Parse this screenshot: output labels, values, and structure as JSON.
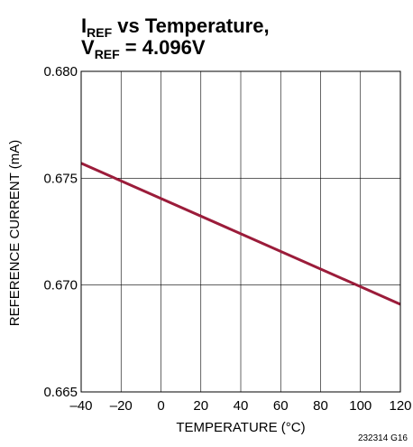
{
  "chart_data": {
    "type": "line",
    "title": {
      "line1": {
        "main": "I",
        "sub": "REF",
        "rest": " vs Temperature,"
      },
      "line2": {
        "main": "V",
        "sub": "REF",
        "rest": " = 4.096V"
      }
    },
    "xlabel": "TEMPERATURE (°C)",
    "ylabel": "REFERENCE CURRENT (mA)",
    "xlim": [
      -40,
      120
    ],
    "ylim": [
      0.665,
      0.68
    ],
    "x_ticks": [
      -40,
      -20,
      0,
      20,
      40,
      60,
      80,
      100,
      120
    ],
    "x_tick_labels": [
      "–40",
      "–20",
      "0",
      "20",
      "40",
      "60",
      "80",
      "100",
      "120"
    ],
    "y_ticks": [
      0.665,
      0.67,
      0.675,
      0.68
    ],
    "y_tick_labels": [
      "0.665",
      "0.670",
      "0.675",
      "0.680"
    ],
    "grid": true,
    "series": [
      {
        "color": "#9b1c3a",
        "x": [
          -40,
          120
        ],
        "y": [
          0.6757,
          0.6691
        ]
      }
    ],
    "figure_id": "232314 G16"
  }
}
